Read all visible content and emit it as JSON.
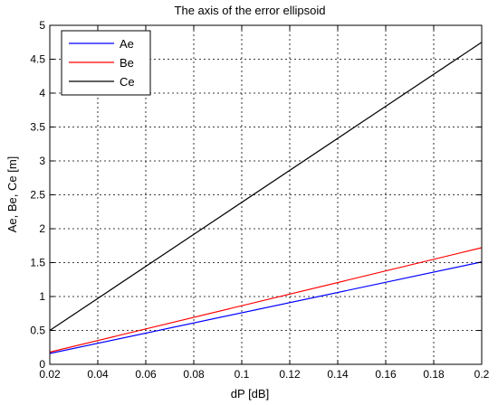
{
  "chart_data": {
    "type": "line",
    "title": "The axis of the error ellipsoid",
    "xlabel": "dP [dB]",
    "ylabel": "Ae, Be, Ce [m]",
    "xlim": [
      0.02,
      0.2
    ],
    "ylim": [
      0,
      5
    ],
    "xticks": [
      0.02,
      0.04,
      0.06,
      0.08,
      0.1,
      0.12,
      0.14,
      0.16,
      0.18,
      0.2
    ],
    "xtick_labels": [
      "0.02",
      "0.04",
      "0.06",
      "0.08",
      "0.1",
      "0.12",
      "0.14",
      "0.16",
      "0.18",
      "0.2"
    ],
    "yticks": [
      0,
      0.5,
      1,
      1.5,
      2,
      2.5,
      3,
      3.5,
      4,
      4.5,
      5
    ],
    "ytick_labels": [
      "0",
      "0.5",
      "1",
      "1.5",
      "2",
      "2.5",
      "3",
      "3.5",
      "4",
      "4.5",
      "5"
    ],
    "grid": true,
    "grid_style": "dotted",
    "legend_position": "top-left",
    "series": [
      {
        "name": "Ae",
        "color": "#0000ff",
        "x": [
          0.02,
          0.2
        ],
        "y": [
          0.16,
          1.51
        ]
      },
      {
        "name": "Be",
        "color": "#ff0000",
        "x": [
          0.02,
          0.2
        ],
        "y": [
          0.18,
          1.72
        ]
      },
      {
        "name": "Ce",
        "color": "#000000",
        "x": [
          0.02,
          0.2
        ],
        "y": [
          0.5,
          4.75
        ]
      }
    ]
  }
}
